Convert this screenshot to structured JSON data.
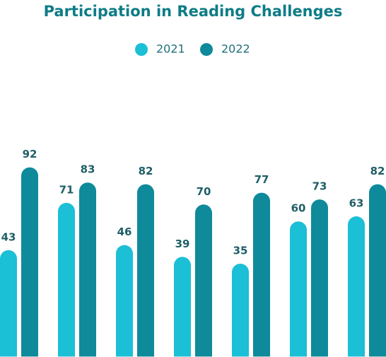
{
  "chart_data": {
    "type": "bar",
    "title": "Participation in Reading Challenges",
    "categories": [
      null,
      null,
      null,
      null,
      null,
      null,
      null
    ],
    "series": [
      {
        "name": "2021",
        "color": "#1bbfd6",
        "values": [
          43,
          71,
          46,
          39,
          35,
          60,
          63
        ]
      },
      {
        "name": "2022",
        "color": "#0e8a9a",
        "values": [
          92,
          83,
          82,
          70,
          77,
          73,
          82
        ]
      }
    ],
    "ylim": [
      -20,
      100
    ],
    "legend": "top"
  }
}
